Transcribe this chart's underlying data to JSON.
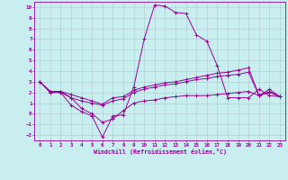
{
  "xlabel": "Windchill (Refroidissement éolien,°C)",
  "xlim": [
    -0.5,
    23.5
  ],
  "ylim": [
    -2.5,
    10.5
  ],
  "xticks": [
    0,
    1,
    2,
    3,
    4,
    5,
    6,
    7,
    8,
    9,
    10,
    11,
    12,
    13,
    14,
    15,
    16,
    17,
    18,
    19,
    20,
    21,
    22,
    23
  ],
  "yticks": [
    -2,
    -1,
    0,
    1,
    2,
    3,
    4,
    5,
    6,
    7,
    8,
    9,
    10
  ],
  "bg_color": "#c8eef0",
  "line_color": "#990099",
  "grid_color": "#b0c8c8",
  "lines": [
    {
      "x": [
        0,
        1,
        2,
        3,
        4,
        5,
        6,
        7,
        8,
        9,
        10,
        11,
        12,
        13,
        14,
        15,
        16,
        17,
        18,
        19,
        20,
        21,
        22,
        23
      ],
      "y": [
        3.0,
        2.0,
        2.0,
        0.8,
        0.2,
        -0.2,
        -2.2,
        -0.2,
        -0.1,
        2.5,
        7.0,
        10.2,
        10.1,
        9.5,
        9.4,
        7.4,
        6.8,
        4.5,
        1.5,
        1.5,
        1.5,
        2.3,
        1.7,
        1.6
      ]
    },
    {
      "x": [
        0,
        1,
        2,
        3,
        4,
        5,
        6,
        7,
        8,
        9,
        10,
        11,
        12,
        13,
        14,
        15,
        16,
        17,
        18,
        19,
        20,
        21,
        22,
        23
      ],
      "y": [
        3.0,
        2.1,
        2.1,
        1.8,
        1.5,
        1.2,
        0.9,
        1.5,
        1.6,
        2.2,
        2.5,
        2.7,
        2.9,
        3.0,
        3.2,
        3.4,
        3.6,
        3.8,
        3.9,
        4.1,
        4.3,
        1.7,
        2.3,
        1.6
      ]
    },
    {
      "x": [
        0,
        1,
        2,
        3,
        4,
        5,
        6,
        7,
        8,
        9,
        10,
        11,
        12,
        13,
        14,
        15,
        16,
        17,
        18,
        19,
        20,
        21,
        22,
        23
      ],
      "y": [
        3.0,
        2.0,
        2.0,
        1.5,
        1.2,
        1.0,
        0.8,
        1.2,
        1.4,
        2.0,
        2.3,
        2.5,
        2.7,
        2.8,
        3.0,
        3.2,
        3.3,
        3.5,
        3.6,
        3.7,
        3.9,
        1.7,
        2.1,
        1.6
      ]
    },
    {
      "x": [
        0,
        1,
        2,
        3,
        4,
        5,
        6,
        7,
        8,
        9,
        10,
        11,
        12,
        13,
        14,
        15,
        16,
        17,
        18,
        19,
        20,
        21,
        22,
        23
      ],
      "y": [
        3.0,
        2.1,
        2.1,
        1.5,
        0.5,
        0.0,
        -0.8,
        -0.5,
        0.3,
        1.0,
        1.2,
        1.3,
        1.5,
        1.6,
        1.7,
        1.7,
        1.7,
        1.8,
        1.9,
        2.0,
        2.1,
        1.7,
        2.0,
        1.6
      ]
    }
  ]
}
